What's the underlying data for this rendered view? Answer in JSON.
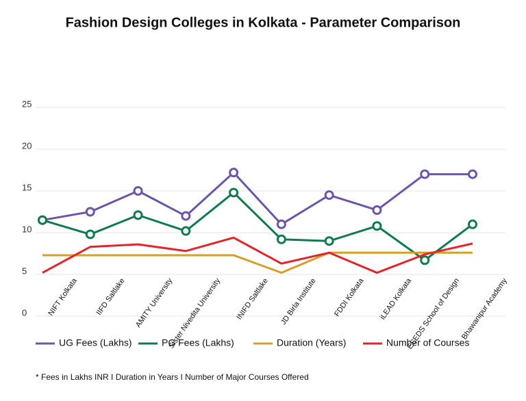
{
  "chart_data": {
    "type": "line",
    "title": "Fashion Design Colleges in Kolkata - Parameter Comparison",
    "categories": [
      "NIFT Kolkata",
      "IIFD Saltlake",
      "AMITY University",
      "Sister Nivedita University",
      "INIFD Saltlake",
      "JD Birla Institute",
      "FDDI Kolkata",
      "iLEAD Kolkata",
      "ESEDS School of Design",
      "Bhawanipur Academy"
    ],
    "series": [
      {
        "name": "UG Fees (Lakhs)",
        "color": "#6a55a8",
        "markers": true,
        "values": [
          11.5,
          12.5,
          15,
          12,
          17.2,
          11,
          14.5,
          12.7,
          17,
          17
        ]
      },
      {
        "name": "PG Fees (Lakhs)",
        "color": "#0f7a50",
        "markers": true,
        "values": [
          11.5,
          9.8,
          12.1,
          10.2,
          14.8,
          9.2,
          9,
          10.8,
          6.7,
          11
        ]
      },
      {
        "name": "Duration (Years)",
        "color": "#d4a02b",
        "markers": false,
        "values": [
          7.3,
          7.3,
          7.3,
          7.3,
          7.3,
          5.2,
          7.6,
          7.6,
          7.6,
          7.6
        ]
      },
      {
        "name": "Number of Courses",
        "color": "#e0262a",
        "markers": false,
        "values": [
          5.2,
          8.3,
          8.6,
          7.8,
          9.4,
          6.3,
          7.6,
          5.2,
          7.4,
          8.7
        ]
      }
    ],
    "ylim": [
      0,
      25
    ],
    "yticks": [
      0,
      5,
      10,
      15,
      20,
      25
    ],
    "grid": true,
    "footnote": "* Fees in Lakhs INR I Duration in Years I Number of Major Courses Offered"
  }
}
